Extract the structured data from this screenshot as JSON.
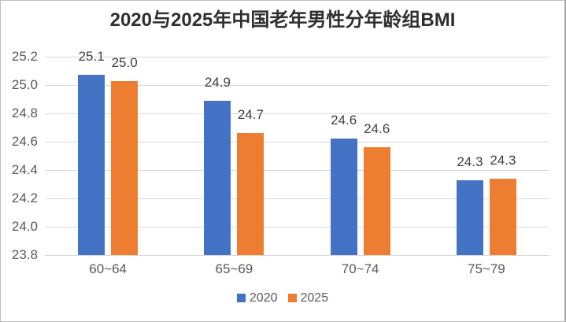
{
  "window": {
    "background": "#ffffff",
    "border_color": "#bdbdbd"
  },
  "chart_data": {
    "type": "bar",
    "title": "2020与2025年中国老年男性分年龄组BMI",
    "categories": [
      "60~64",
      "65~69",
      "70~74",
      "75~79"
    ],
    "series": [
      {
        "name": "2020",
        "color": "#4472C4",
        "values": [
          25.07,
          24.89,
          24.62,
          24.33
        ],
        "data_labels": [
          "25.1",
          "24.9",
          "24.6",
          "24.3"
        ]
      },
      {
        "name": "2025",
        "color": "#ED7D31",
        "values": [
          25.03,
          24.66,
          24.56,
          24.34
        ],
        "data_labels": [
          "25.0",
          "24.7",
          "24.6",
          "24.3"
        ]
      }
    ],
    "ylim": [
      23.8,
      25.2
    ],
    "ytick_step": 0.2,
    "yticks": [
      "25.2",
      "25.0",
      "24.8",
      "24.6",
      "24.4",
      "24.2",
      "24.0",
      "23.8"
    ],
    "xlabel": "",
    "ylabel": "",
    "grid": true,
    "gridline_color": "#d9d9d9",
    "axis_text_color": "#595959",
    "data_label_color": "#404040",
    "legend_position": "bottom"
  }
}
